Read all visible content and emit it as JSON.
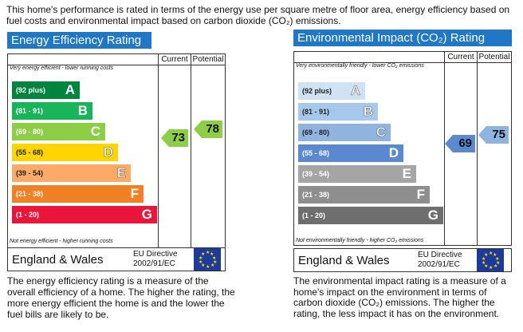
{
  "intro": "This home's performance is rated in terms of the energy use per square metre of floor area, energy efficiency based on fuel costs and environmental impact based on carbon dioxide (CO₂) emissions.",
  "colors": {
    "title_bar": "#1f78c5",
    "energy_bands": [
      "#00853f",
      "#19b459",
      "#8dce46",
      "#ffd500",
      "#fcaa65",
      "#ef8023",
      "#e9153b"
    ],
    "env_bands": [
      "#cfe2f3",
      "#a6c8ea",
      "#8fb4e0",
      "#5a89cf",
      "#a5a5a5",
      "#8e8e8e",
      "#6e6e6e"
    ],
    "energy_current_arrow": "#8dce46",
    "energy_potential_arrow": "#8dce46",
    "env_current_arrow": "#5a89cf",
    "env_potential_arrow": "#8fb4e0"
  },
  "energy": {
    "title": "Energy Efficiency Rating",
    "current_label": "Current",
    "potential_label": "Potential",
    "top_caption": "Very energy efficient - lower running costs",
    "bottom_caption": "Not energy efficient - higher running costs",
    "bands": [
      {
        "range": "(92 plus)",
        "letter": "A"
      },
      {
        "range": "(81 - 91)",
        "letter": "B"
      },
      {
        "range": "(69 - 80)",
        "letter": "C"
      },
      {
        "range": "(55 - 68)",
        "letter": "D"
      },
      {
        "range": "(39 - 54)",
        "letter": "E"
      },
      {
        "range": "(21 - 38)",
        "letter": "F"
      },
      {
        "range": "(1 - 20)",
        "letter": "G"
      }
    ],
    "current": "73",
    "potential": "78",
    "region": "England & Wales",
    "directive_line1": "EU Directive",
    "directive_line2": "2002/91/EC",
    "description": "The energy efficiency rating is a measure of the overall efficiency of a home. The higher the rating, the more energy efficient the home is and the lower the fuel bills are likely to be."
  },
  "environment": {
    "title": "Environmental Impact (CO₂) Rating",
    "current_label": "Current",
    "potential_label": "Potential",
    "top_caption": "Very environmentally friendly - lower CO₂ emissions",
    "bottom_caption": "Not environmentally friendly - higher CO₂ emissions",
    "bands": [
      {
        "range": "(92 plus)",
        "letter": "A"
      },
      {
        "range": "(81 - 91)",
        "letter": "B"
      },
      {
        "range": "(69 - 80)",
        "letter": "C"
      },
      {
        "range": "(55 - 68)",
        "letter": "D"
      },
      {
        "range": "(39 - 54)",
        "letter": "E"
      },
      {
        "range": "(21 - 38)",
        "letter": "F"
      },
      {
        "range": "(1 - 20)",
        "letter": "G"
      }
    ],
    "current": "69",
    "potential": "75",
    "region": "England & Wales",
    "directive_line1": "EU Directive",
    "directive_line2": "2002/91/EC",
    "description": "The environmental impact rating is a measure of a home's impact on the environment in terms of carbon dioxide (CO₂) emissions. The higher the rating, the less impact it has on the environment."
  }
}
